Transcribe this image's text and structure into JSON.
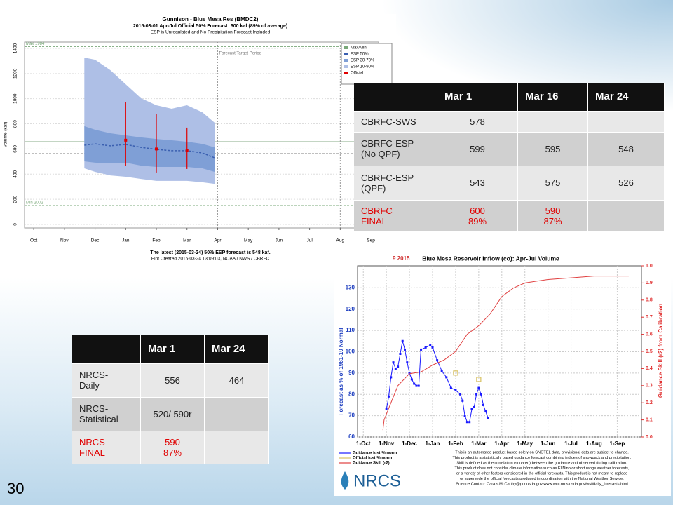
{
  "slide_number": "30",
  "esp_chart": {
    "title": "Gunnison - Blue Mesa Res (BMDC2)",
    "subtitle": "2015-03-01 Apr-Jul Official 50% Forecast: 600 kaf (89% of average)",
    "note": "ESP is Unregulated and No Precipitation Forecast Included",
    "ylabel": "Volume (kaf)",
    "months": [
      "Oct",
      "Nov",
      "Dec",
      "Jan",
      "Feb",
      "Mar",
      "Apr",
      "May",
      "Jun",
      "Jul",
      "Aug",
      "Sep"
    ],
    "xlim": [
      -0.3,
      11.25
    ],
    "ylim": [
      -28,
      1450
    ],
    "yticks": [
      0,
      200,
      400,
      600,
      800,
      1000,
      1200,
      1400
    ],
    "hlines": [
      {
        "value": 1415,
        "label": "Max 1984",
        "color": "#7aa87a",
        "dashed": true
      },
      {
        "value": 150,
        "label": "Min 2002",
        "color": "#7aa87a",
        "dashed": true
      },
      {
        "value": 657,
        "color": "#5f8f5f",
        "dashed": false
      },
      {
        "value": 563,
        "color": "#999999",
        "dashed": true
      }
    ],
    "target_period": {
      "label": "Forecast Target Period",
      "x": [
        6,
        10
      ]
    },
    "esp": {
      "x": [
        1.65,
        2,
        2.5,
        3,
        3.5,
        4,
        4.5,
        5,
        5.5,
        5.9
      ],
      "p10": [
        446,
        418,
        390,
        379,
        362,
        346,
        346,
        346,
        335,
        323
      ],
      "p30": [
        502,
        491,
        485,
        491,
        468,
        457,
        457,
        457,
        446,
        418
      ],
      "p50": [
        630,
        641,
        625,
        636,
        613,
        597,
        586,
        586,
        569,
        530
      ],
      "p70": [
        781,
        753,
        725,
        708,
        692,
        680,
        669,
        658,
        641,
        613
      ],
      "p90": [
        1327,
        1310,
        1227,
        1115,
        1004,
        948,
        920,
        948,
        892,
        809
      ]
    },
    "official": {
      "x": [
        3,
        4,
        5
      ],
      "values": [
        670,
        600,
        590
      ],
      "low": [
        463,
        413,
        441
      ],
      "high": [
        976,
        881,
        770
      ]
    },
    "legend": [
      {
        "label": "Max/Min",
        "color": "#7aa87a"
      },
      {
        "label": "ESP 50%",
        "color": "#3a5fb0"
      },
      {
        "label": "ESP 30-70%",
        "color": "#7f9fd6"
      },
      {
        "label": "ESP 10-90%",
        "color": "#aebfe6"
      },
      {
        "label": "Official",
        "color": "#e00000"
      }
    ],
    "footer": "The latest (2015-03-24) 50% ESP forecast is 548 kaf.",
    "credit": "Plot Created 2015-03-24 13:09:03, NOAA / NWS / CBRFC"
  },
  "cbrfc_table": {
    "columns": [
      "Mar 1",
      "Mar 16",
      "Mar 24"
    ],
    "rows": [
      {
        "label": "CBRFC-SWS",
        "cells": [
          "578",
          null,
          null
        ]
      },
      {
        "label": "CBRFC-ESP (No QPF)",
        "cells": [
          "599",
          "595",
          "548"
        ]
      },
      {
        "label": "CBRFC-ESP (QPF)",
        "cells": [
          "543",
          "575",
          "526"
        ]
      },
      {
        "label": "CBRFC\nFINAL",
        "cells": [
          "600\n89%",
          "590\n87%",
          null
        ]
      }
    ]
  },
  "nrcs_chart": {
    "date_fragment": "9 2015",
    "title": "Blue Mesa Reservoir Inflow (co): Apr-Jul Volume",
    "ylabel": "Forecast as % of 1981-10 Normal",
    "y2label": "Guidance Skill (r2) from Calibration",
    "xlim": [
      -0.25,
      12.05
    ],
    "xticks": [
      "1-Oct",
      "1-Nov",
      "1-Dec",
      "1-Jan",
      "1-Feb",
      "1-Mar",
      "1-Apr",
      "1-May",
      "1-Jun",
      "1-Jul",
      "1-Aug",
      "1-Sep"
    ],
    "ylim": [
      60,
      140.3
    ],
    "yticks": [
      60,
      70,
      80,
      90,
      100,
      110,
      120,
      130
    ],
    "y2lim": [
      0,
      1
    ],
    "y2ticks": [
      {
        "value": 0,
        "label": "0.0"
      },
      0.1,
      0.2,
      0.3,
      0.4,
      0.5,
      0.6,
      0.7,
      0.8,
      0.9,
      {
        "value": 1,
        "label": "1.0"
      }
    ],
    "guidance": {
      "name": "Guidance fcst % norm",
      "color": "#1a1aff",
      "x": [
        1.0,
        1.1,
        1.2,
        1.3,
        1.4,
        1.5,
        1.6,
        1.7,
        1.8,
        1.9,
        2.0,
        2.1,
        2.2,
        2.3,
        2.4,
        2.5,
        2.7,
        2.9,
        3.0,
        3.2,
        3.4,
        3.6,
        3.8,
        4.0,
        4.2,
        4.3,
        4.4,
        4.5,
        4.6,
        4.7,
        4.8,
        4.9,
        5.0,
        5.1,
        5.2,
        5.3,
        5.4
      ],
      "values": [
        73,
        79,
        88,
        95,
        92,
        93,
        99,
        105,
        101,
        95,
        90,
        87,
        85,
        84,
        84,
        101,
        102,
        103,
        102,
        96,
        91,
        88,
        83,
        82,
        80,
        77,
        70,
        67,
        67,
        73,
        74,
        80,
        83,
        80,
        75,
        72,
        69
      ]
    },
    "official": {
      "name": "Official fcst % norm",
      "color": "#d8c060",
      "x": [
        4.0,
        5.0
      ],
      "values": [
        90,
        87
      ]
    },
    "skill": {
      "name": "Guidance Skill (r2)",
      "color": "#e04040",
      "x": [
        0.85,
        0.9,
        1.2,
        1.5,
        2.0,
        2.5,
        3.0,
        3.5,
        4.0,
        4.5,
        5.0,
        5.5,
        6.0,
        6.5,
        7.0,
        8.0,
        9.0,
        10.0,
        11.5
      ],
      "values": [
        0.04,
        0.1,
        0.2,
        0.3,
        0.37,
        0.38,
        0.42,
        0.45,
        0.5,
        0.6,
        0.65,
        0.72,
        0.82,
        0.87,
        0.9,
        0.92,
        0.93,
        0.94,
        0.94
      ]
    },
    "notes": [
      "This is an automated product based solely on SNOTEL data, provisional data are subject to change.",
      "This product is a statistically based guidance forecast combining indices of snowpack and precipitation.",
      "Skill is defined as the correlation (squared) between the guidance and observed during calibration.",
      "This product does not consider climate information such as El Nino or short range weather forecasts,",
      "or a variety of other factors considered in the official forecasts. This product is not meant to replace",
      "or supersede the official forecasts produced in coordination with the National Weather Service.",
      "Science Contact: Cara.s.McCarthy@por.usda.gov www.wcc.nrcs.usda.gov/wsf/daily_forecasts.html"
    ],
    "logo": "NRCS"
  },
  "nrcs_table": {
    "columns": [
      "Mar 1",
      "Mar 24"
    ],
    "rows": [
      {
        "label": "NRCS-\nDaily",
        "cells": [
          "556",
          "464"
        ]
      },
      {
        "label": "NRCS-\nStatistical",
        "cells": [
          "520/ 590r",
          null
        ]
      },
      {
        "label": "NRCS\nFINAL",
        "cells": [
          "590\n87%",
          null
        ]
      }
    ]
  }
}
